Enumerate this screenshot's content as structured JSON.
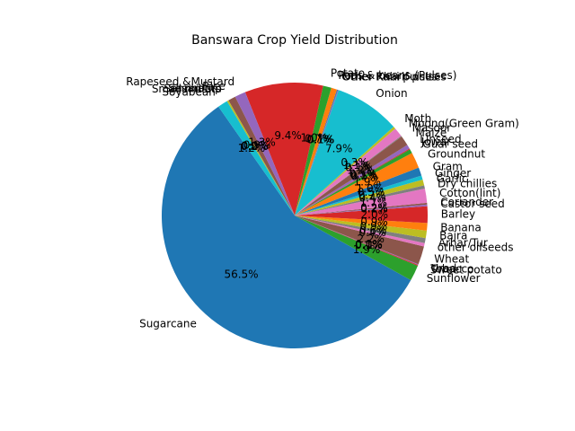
{
  "chart_data": {
    "type": "pie",
    "title": "Banswara Crop Yield Distribution",
    "start_angle_deg": 125,
    "direction": "counterclockwise",
    "slices": [
      {
        "label": "Sugarcane",
        "value": 56.5,
        "pct": "56.5%",
        "color": "#1f77b4"
      },
      {
        "label": "Sunflower",
        "value": 1.9,
        "pct": "1.9%",
        "color": "#2ca02c"
      },
      {
        "label": "Sweet potato",
        "value": 0.1,
        "pct": "0.1%",
        "color": "#d62728"
      },
      {
        "label": "Tobacco",
        "value": 0.1,
        "pct": "0.1%",
        "color": "#9467bd"
      },
      {
        "label": "Urad",
        "value": 0.0,
        "pct": "0.0%",
        "color": "#8c564b"
      },
      {
        "label": "Wheat",
        "value": 2.2,
        "pct": "2.2%",
        "color": "#8c564b"
      },
      {
        "label": "other oilseeds",
        "value": 0.4,
        "pct": "0.4%",
        "color": "#e377c2"
      },
      {
        "label": "Arhar/Tur",
        "value": 0.6,
        "pct": "0.6%",
        "color": "#7f7f7f"
      },
      {
        "label": "Bajra",
        "value": 0.9,
        "pct": "0.9%",
        "color": "#bcbd22"
      },
      {
        "label": "Banana",
        "value": 0.9,
        "pct": "0.9%",
        "color": "#ff7f0e"
      },
      {
        "label": "Barley",
        "value": 2.0,
        "pct": "2.0%",
        "color": "#d62728"
      },
      {
        "label": "Castor seed",
        "value": 0.2,
        "pct": "0.2%",
        "color": "#9467bd"
      },
      {
        "label": "Coriander",
        "value": 0.2,
        "pct": "0.2%",
        "color": "#8c564b"
      },
      {
        "label": "Cotton(lint)",
        "value": 1.7,
        "pct": "1.7%",
        "color": "#e377c2"
      },
      {
        "label": "Dry chillies",
        "value": 0.4,
        "pct": "0.4%",
        "color": "#7f7f7f"
      },
      {
        "label": "Garlic",
        "value": 0.7,
        "pct": "0.7%",
        "color": "#bcbd22"
      },
      {
        "label": "Ginger",
        "value": 0.5,
        "pct": "0.5%",
        "color": "#17becf"
      },
      {
        "label": "Gram",
        "value": 1.0,
        "pct": "1.0%",
        "color": "#1f77b4"
      },
      {
        "label": "Groundnut",
        "value": 1.9,
        "pct": "1.9%",
        "color": "#ff7f0e"
      },
      {
        "label": "Guar seed",
        "value": 0.5,
        "pct": "0.5%",
        "color": "#2ca02c"
      },
      {
        "label": "Jowar",
        "value": 0.1,
        "pct": "0.1%",
        "color": "#d62728"
      },
      {
        "label": "Linseed",
        "value": 0.5,
        "pct": "0.5%",
        "color": "#9467bd"
      },
      {
        "label": "Maize",
        "value": 1.2,
        "pct": "1.2%",
        "color": "#8c564b"
      },
      {
        "label": "Masoor",
        "value": 0.1,
        "pct": "0.1%",
        "color": "#7f7f7f"
      },
      {
        "label": "Moong(Green Gram)",
        "value": 1.1,
        "pct": "1.1%",
        "color": "#e377c2"
      },
      {
        "label": "Moth",
        "value": 0.3,
        "pct": "0.3%",
        "color": "#bcbd22"
      },
      {
        "label": "Onion",
        "value": 7.9,
        "pct": "7.9%",
        "color": "#17becf"
      },
      {
        "label": "Other Kharif pulses",
        "value": 0.1,
        "pct": "0.1%",
        "color": "#9467bd"
      },
      {
        "label": "Other Rabi pulses",
        "value": 0.1,
        "pct": "0.1%",
        "color": "#1f77b4"
      },
      {
        "label": "Peas & beans (Pulses)",
        "value": 0.7,
        "pct": "0.7%",
        "color": "#ff7f0e"
      },
      {
        "label": "Potato",
        "value": 1.0,
        "pct": "1.0%",
        "color": "#2ca02c"
      },
      {
        "label": "",
        "value": 9.4,
        "pct": "9.4%",
        "color": "#d62728"
      },
      {
        "label": "Rapeseed &Mustard",
        "value": 1.3,
        "pct": "1.3%",
        "color": "#9467bd"
      },
      {
        "label": "Rice",
        "value": 0.9,
        "pct": "0.9%",
        "color": "#8c564b"
      },
      {
        "label": "Sannhamp",
        "value": 0.0,
        "pct": "0.0%",
        "color": "#e377c2"
      },
      {
        "label": "Sesamum",
        "value": 0.0,
        "pct": "0.0%",
        "color": "#7f7f7f"
      },
      {
        "label": "Small millets",
        "value": 0.2,
        "pct": "0.2%",
        "color": "#bcbd22"
      },
      {
        "label": "Soyabean",
        "value": 1.2,
        "pct": "1.2%",
        "color": "#17becf"
      }
    ]
  }
}
